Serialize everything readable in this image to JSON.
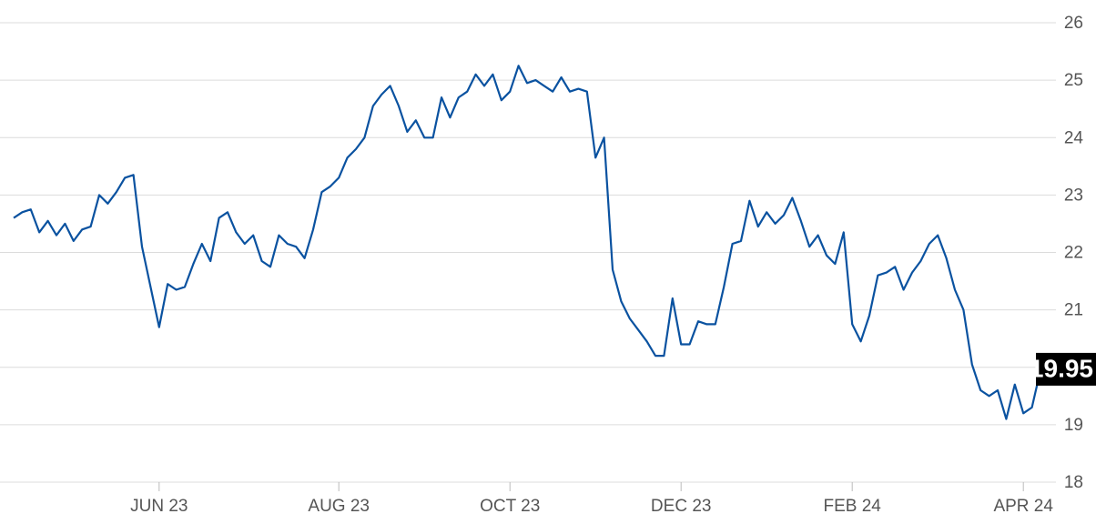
{
  "chart_data": {
    "type": "line",
    "categories": [
      null,
      null,
      null,
      null,
      null,
      null,
      null,
      null,
      null,
      null,
      null,
      null,
      null,
      null,
      null,
      null,
      null,
      "JUN 23",
      null,
      null,
      null,
      null,
      null,
      null,
      null,
      null,
      null,
      null,
      null,
      null,
      null,
      null,
      null,
      null,
      null,
      null,
      null,
      null,
      "AUG 23",
      null,
      null,
      null,
      null,
      null,
      null,
      null,
      null,
      null,
      null,
      null,
      null,
      null,
      null,
      null,
      null,
      null,
      null,
      null,
      "OCT 23",
      null,
      null,
      null,
      null,
      null,
      null,
      null,
      null,
      null,
      null,
      null,
      null,
      null,
      null,
      null,
      null,
      null,
      null,
      null,
      "DEC 23",
      null,
      null,
      null,
      null,
      null,
      null,
      null,
      null,
      null,
      null,
      null,
      null,
      null,
      null,
      null,
      null,
      null,
      null,
      null,
      "FEB 24",
      null,
      null,
      null,
      null,
      null,
      null,
      null,
      null,
      null,
      null,
      null,
      null,
      null,
      null,
      null,
      null,
      null,
      null,
      null,
      "APR 24",
      null,
      null
    ],
    "values": [
      22.6,
      22.7,
      22.75,
      22.35,
      22.55,
      22.3,
      22.5,
      22.2,
      22.4,
      22.45,
      23.0,
      22.85,
      23.05,
      23.3,
      23.35,
      22.1,
      21.4,
      20.7,
      21.45,
      21.35,
      21.4,
      21.8,
      22.15,
      21.85,
      22.6,
      22.7,
      22.35,
      22.15,
      22.3,
      21.85,
      21.75,
      22.3,
      22.15,
      22.1,
      21.9,
      22.4,
      23.05,
      23.15,
      23.3,
      23.65,
      23.8,
      24.0,
      24.55,
      24.75,
      24.9,
      24.55,
      24.1,
      24.3,
      24.0,
      24.0,
      24.7,
      24.35,
      24.7,
      24.8,
      25.1,
      24.9,
      25.1,
      24.65,
      24.8,
      25.25,
      24.95,
      25.0,
      24.9,
      24.8,
      25.05,
      24.8,
      24.85,
      24.8,
      23.65,
      24.0,
      21.7,
      21.15,
      20.85,
      20.65,
      20.45,
      20.2,
      20.2,
      21.2,
      20.4,
      20.4,
      20.8,
      20.75,
      20.75,
      21.4,
      22.15,
      22.2,
      22.9,
      22.45,
      22.7,
      22.5,
      22.65,
      22.95,
      22.55,
      22.1,
      22.3,
      21.95,
      21.8,
      22.35,
      20.75,
      20.45,
      20.9,
      21.6,
      21.65,
      21.75,
      21.35,
      21.65,
      21.85,
      22.15,
      22.3,
      21.9,
      21.35,
      21.0,
      20.05,
      19.6,
      19.5,
      19.6,
      19.1,
      19.7,
      19.2,
      19.3,
      19.95
    ],
    "color": "#0a52a0",
    "ylim": [
      18,
      26
    ],
    "yticks": [
      18,
      19,
      20,
      21,
      22,
      23,
      24,
      25,
      26
    ],
    "grid": true
  }
}
